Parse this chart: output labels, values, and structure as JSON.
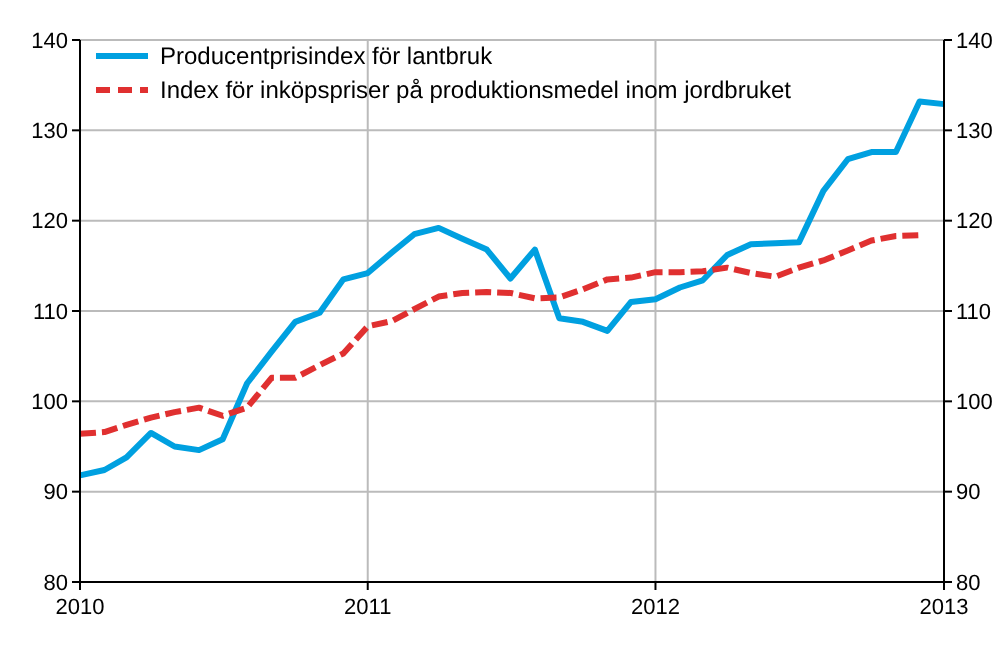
{
  "chart_data": {
    "type": "line",
    "x": [
      "2010-01",
      "2010-02",
      "2010-03",
      "2010-04",
      "2010-05",
      "2010-06",
      "2010-07",
      "2010-08",
      "2010-09",
      "2010-10",
      "2010-11",
      "2010-12",
      "2011-01",
      "2011-02",
      "2011-03",
      "2011-04",
      "2011-05",
      "2011-06",
      "2011-07",
      "2011-08",
      "2011-09",
      "2011-10",
      "2011-11",
      "2011-12",
      "2012-01",
      "2012-02",
      "2012-03",
      "2012-04",
      "2012-05",
      "2012-06",
      "2012-07",
      "2012-08",
      "2012-09",
      "2012-10",
      "2012-11",
      "2012-12",
      "2013-01"
    ],
    "series": [
      {
        "name": "Producentprisindex för lantbruk",
        "color": "#00a0e0",
        "line_style": "solid",
        "values": [
          91.8,
          92.4,
          93.8,
          96.5,
          95.0,
          94.6,
          95.8,
          102.0,
          105.5,
          108.8,
          109.8,
          113.5,
          114.2,
          116.5,
          118.5,
          119.2,
          118.0,
          116.8,
          113.6,
          116.8,
          109.2,
          108.8,
          107.8,
          111.0,
          111.3,
          112.6,
          113.4,
          116.2,
          117.4,
          117.5,
          117.6,
          123.3,
          126.8,
          127.6,
          127.6,
          133.2,
          132.9
        ]
      },
      {
        "name": "Index för inköpspriser på produktionsmedel inom jordbruket",
        "color": "#e03030",
        "line_style": "dashed",
        "values": [
          96.4,
          96.6,
          97.4,
          98.2,
          98.8,
          99.3,
          98.4,
          99.3,
          102.6,
          102.6,
          104.0,
          105.3,
          108.3,
          108.9,
          110.2,
          111.6,
          112.0,
          112.1,
          112.0,
          111.4,
          111.5,
          112.4,
          113.5,
          113.7,
          114.3,
          114.3,
          114.4,
          114.8,
          114.2,
          113.8,
          114.8,
          115.6,
          116.7,
          117.8,
          118.3,
          118.4,
          null
        ]
      }
    ],
    "xlim": [
      "2010-01",
      "2013-01"
    ],
    "xticks": [
      {
        "value": "2010-01",
        "label": "2010"
      },
      {
        "value": "2011-01",
        "label": "2011"
      },
      {
        "value": "2012-01",
        "label": "2012"
      },
      {
        "value": "2013-01",
        "label": "2013"
      }
    ],
    "ylim": [
      80,
      140
    ],
    "yticks": [
      80,
      90,
      100,
      110,
      120,
      130,
      140
    ],
    "y2lim": [
      80,
      140
    ],
    "y2ticks": [
      80,
      90,
      100,
      110,
      120,
      130,
      140
    ],
    "grid": true,
    "legend": "top left"
  }
}
